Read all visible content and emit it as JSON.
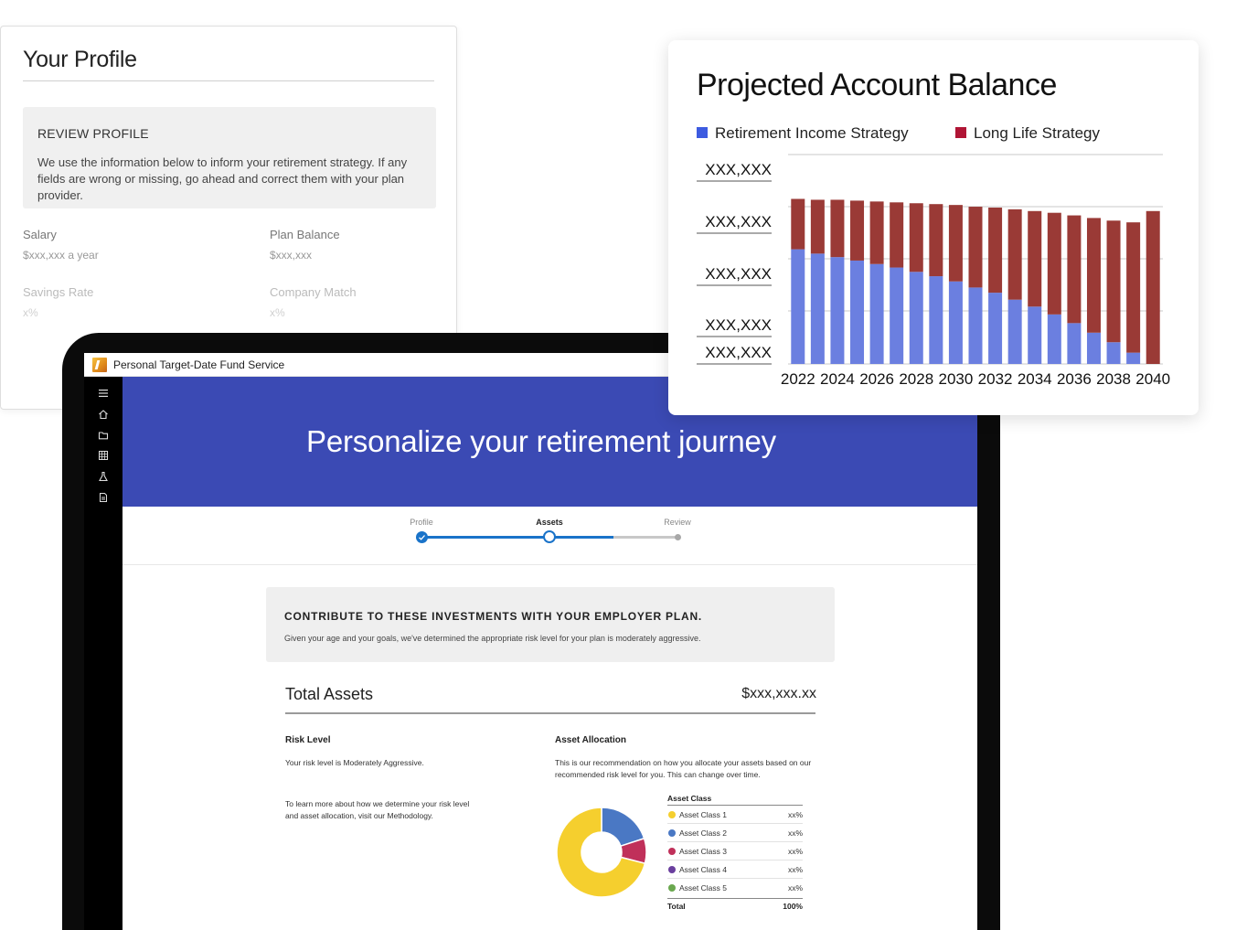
{
  "profile": {
    "title": "Your Profile",
    "review_heading": "REVIEW PROFILE",
    "review_text": "We use the information below to inform your retirement strategy. If any fields are wrong or missing, go ahead and correct them with your plan provider.",
    "fields": [
      {
        "label": "Salary",
        "value": "$xxx,xxx a year"
      },
      {
        "label": "Plan Balance",
        "value": "$xxx,xxx"
      },
      {
        "label": "Savings Rate",
        "value": "x%"
      },
      {
        "label": "Company Match",
        "value": "x%"
      }
    ]
  },
  "app": {
    "title": "Personal Target-Date Fund Service",
    "sidebar_icons": [
      "menu-icon",
      "home-icon",
      "folder-icon",
      "grid-icon",
      "flask-icon",
      "document-icon"
    ]
  },
  "hero": {
    "title": "Personalize your retirement journey"
  },
  "stepper": {
    "steps": [
      {
        "label": "Profile",
        "state": "complete"
      },
      {
        "label": "Assets",
        "state": "current"
      },
      {
        "label": "Review",
        "state": "upcoming"
      }
    ]
  },
  "contribute": {
    "heading": "CONTRIBUTE TO THESE INVESTMENTS WITH YOUR EMPLOYER PLAN.",
    "text": "Given your age and your goals, we've determined the appropriate risk level for your plan is moderately aggressive."
  },
  "total_assets": {
    "label": "Total Assets",
    "value": "$xxx,xxx.xx"
  },
  "risk": {
    "heading": "Risk Level",
    "text": "Your risk level is Moderately Aggressive.",
    "methodology": "To learn more about how we determine your risk level and asset allocation, visit our Methodology."
  },
  "allocation": {
    "heading": "Asset Allocation",
    "text": "This is our recommendation on how you allocate your assets based on our recommended risk level for you. This can change over time.",
    "table_header": "Asset Class",
    "rows": [
      {
        "name": "Asset Class 1",
        "pct": "xx%",
        "color": "#f5cf2e"
      },
      {
        "name": "Asset Class 2",
        "pct": "xx%",
        "color": "#4a78c4"
      },
      {
        "name": "Asset Class 3",
        "pct": "xx%",
        "color": "#c0305a"
      },
      {
        "name": "Asset Class 4",
        "pct": "xx%",
        "color": "#6a3f9e"
      },
      {
        "name": "Asset Class 5",
        "pct": "xx%",
        "color": "#6aa84f"
      }
    ],
    "total_label": "Total",
    "total_value": "100%",
    "donut_slices": [
      {
        "name": "Asset Class 2",
        "value": 20,
        "color": "#4a78c4"
      },
      {
        "name": "Asset Class 3",
        "value": 9,
        "color": "#c0305a"
      },
      {
        "name": "Asset Class 1",
        "value": 71,
        "color": "#f5cf2e"
      }
    ]
  },
  "chart_data": {
    "type": "bar",
    "stacked": true,
    "title": "Projected Account Balance",
    "y_tick_labels": [
      "XXX,XXX",
      "XXX,XXX",
      "XXX,XXX",
      "XXX,XXX",
      "XXX,XXX"
    ],
    "categories": [
      "2022",
      "2023",
      "2024",
      "2025",
      "2026",
      "2027",
      "2028",
      "2029",
      "2030",
      "2031",
      "2032",
      "2033",
      "2034",
      "2035",
      "2036",
      "2037",
      "2038",
      "2039",
      "2040"
    ],
    "x_tick_labels": [
      "2022",
      "2024",
      "2026",
      "2028",
      "2030",
      "2032",
      "2034",
      "2036",
      "2038",
      "2040"
    ],
    "ylim": [
      0,
      200
    ],
    "series": [
      {
        "name": "Retirement Income Strategy",
        "color": "#6b7fe0",
        "values": [
          132,
          127,
          123,
          119,
          115,
          111,
          106,
          101,
          95,
          88,
          82,
          74,
          66,
          57,
          47,
          36,
          25,
          13,
          0
        ]
      },
      {
        "name": "Long Life Strategy",
        "color": "#9a3a36",
        "values": [
          58,
          62,
          66,
          69,
          72,
          75,
          79,
          83,
          88,
          93,
          98,
          104,
          110,
          117,
          124,
          132,
          140,
          150,
          176
        ]
      }
    ],
    "legend": "top-left",
    "grid": true
  }
}
